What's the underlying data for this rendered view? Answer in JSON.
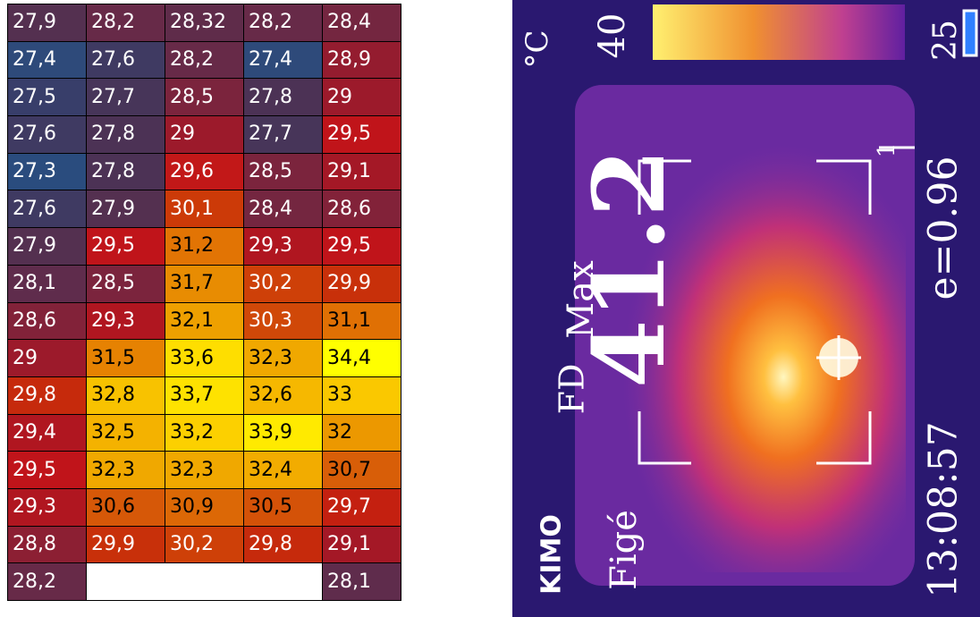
{
  "table": {
    "rows": [
      [
        "27,9",
        "28,2",
        "28,32",
        "28,2",
        "28,4"
      ],
      [
        "27,4",
        "27,6",
        "28,2",
        "27,4",
        "28,9"
      ],
      [
        "27,5",
        "27,7",
        "28,5",
        "27,8",
        "29"
      ],
      [
        "27,6",
        "27,8",
        "29",
        "27,7",
        "29,5"
      ],
      [
        "27,3",
        "27,8",
        "29,6",
        "28,5",
        "29,1"
      ],
      [
        "27,6",
        "27,9",
        "30,1",
        "28,4",
        "28,6"
      ],
      [
        "27,9",
        "29,5",
        "31,2",
        "29,3",
        "29,5"
      ],
      [
        "28,1",
        "28,5",
        "31,7",
        "30,2",
        "29,9"
      ],
      [
        "28,6",
        "29,3",
        "32,1",
        "30,3",
        "31,1"
      ],
      [
        "29",
        "31,5",
        "33,6",
        "32,3",
        "34,4"
      ],
      [
        "29,8",
        "32,8",
        "33,7",
        "32,6",
        "33"
      ],
      [
        "29,4",
        "32,5",
        "33,2",
        "33,9",
        "32"
      ],
      [
        "29,5",
        "32,3",
        "32,3",
        "32,4",
        "30,7"
      ],
      [
        "29,3",
        "30,6",
        "30,9",
        "30,5",
        "29,7"
      ],
      [
        "28,8",
        "29,9",
        "30,2",
        "29,8",
        "29,1"
      ],
      [
        "28,2",
        "28,1"
      ]
    ],
    "colors": [
      [
        "#543050",
        "#672a48",
        "#5f2c4a",
        "#672a48",
        "#742640"
      ],
      [
        "#2e4a7a",
        "#3f3a62",
        "#672a48",
        "#2e4a7a",
        "#941c2f"
      ],
      [
        "#383e6a",
        "#473559",
        "#7b243d",
        "#4c3255",
        "#9c1a2b"
      ],
      [
        "#3f3a62",
        "#4c3255",
        "#9c1a2b",
        "#473559",
        "#c0141a"
      ],
      [
        "#2a4c7e",
        "#4c3255",
        "#c21818",
        "#7b243d",
        "#a41826"
      ],
      [
        "#3f3a62",
        "#543050",
        "#cc3a08",
        "#742640",
        "#822239"
      ],
      [
        "#543050",
        "#c0141a",
        "#e27404",
        "#b01620",
        "#c0141a"
      ],
      [
        "#5f2c4c",
        "#7b243d",
        "#e88c02",
        "#ce4008",
        "#c8300a"
      ],
      [
        "#822239",
        "#b01620",
        "#eea000",
        "#d04808",
        "#e07004"
      ],
      [
        "#9c1a2b",
        "#e68202",
        "#fede00",
        "#f0a800",
        "#ffff00"
      ],
      [
        "#c62a0c",
        "#f8c200",
        "#fee200",
        "#f6b800",
        "#fac800"
      ],
      [
        "#b01620",
        "#f4b200",
        "#fcd000",
        "#ffea00",
        "#ec9800"
      ],
      [
        "#c0141a",
        "#f0a800",
        "#f0a800",
        "#f2ac00",
        "#d85e08"
      ],
      [
        "#b01620",
        "#d65808",
        "#dc6806",
        "#d45208",
        "#c42010"
      ],
      [
        "#8c1f33",
        "#c8300a",
        "#ce4008",
        "#c62a0c",
        "#a41826"
      ],
      [
        "#672a48",
        "#5f2c4c"
      ]
    ]
  },
  "camera": {
    "unit": "°C",
    "scale_max": "40",
    "scale_min": "25",
    "mode": "Max",
    "reading": "41.2",
    "flag": "FD",
    "emissivity": "e=0.96",
    "time": "13:08:57",
    "brand": "KIMO",
    "status": "Figé",
    "marker": "1"
  }
}
